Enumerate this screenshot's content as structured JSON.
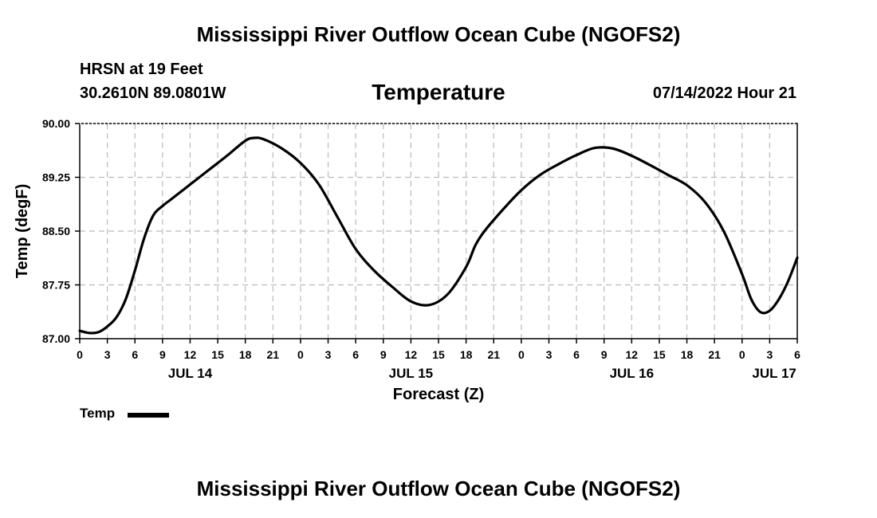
{
  "header": {
    "title": "Mississippi River Outflow Ocean Cube (NGOFS2)",
    "station": "HRSN at 19 Feet",
    "coordinates": "30.2610N  89.0801W",
    "subtitle": "Temperature",
    "datetime": "07/14/2022 Hour 21"
  },
  "footer": {
    "title": "Mississippi River Outflow Ocean Cube (NGOFS2)"
  },
  "colors": {
    "line": "#000000",
    "grid": "#bbbbbb"
  },
  "chart_data": {
    "type": "line",
    "title": "Temperature",
    "xlabel": "Forecast (Z)",
    "ylabel": "Temp (degF)",
    "xlim": [
      0,
      78
    ],
    "ylim": [
      87.0,
      90.0
    ],
    "yticks": [
      87.0,
      87.75,
      88.5,
      89.25,
      90.0
    ],
    "ytick_labels": [
      "87.00",
      "87.75",
      "88.50",
      "89.25",
      "90.00"
    ],
    "xticks": [
      0,
      3,
      6,
      9,
      12,
      15,
      18,
      21,
      24,
      27,
      30,
      33,
      36,
      39,
      42,
      45,
      48,
      51,
      54,
      57,
      60,
      63,
      66,
      69,
      72,
      75,
      78
    ],
    "xtick_labels": [
      "0",
      "3",
      "6",
      "9",
      "12",
      "15",
      "18",
      "21",
      "0",
      "3",
      "6",
      "9",
      "12",
      "15",
      "18",
      "21",
      "0",
      "3",
      "6",
      "9",
      "12",
      "15",
      "18",
      "21",
      "0",
      "3",
      "6"
    ],
    "day_labels": [
      {
        "x": 12,
        "label": "JUL 14"
      },
      {
        "x": 36,
        "label": "JUL 15"
      },
      {
        "x": 60,
        "label": "JUL 16"
      },
      {
        "x": 75.5,
        "label": "JUL 17"
      }
    ],
    "grid": true,
    "legend_position": "bottom-left",
    "series": [
      {
        "name": "Temp",
        "x": [
          0,
          1,
          2,
          3,
          4,
          5,
          6,
          7,
          8,
          9,
          10,
          12,
          14,
          16,
          18,
          19,
          20,
          22,
          24,
          26,
          28,
          30,
          32,
          34,
          36,
          38,
          40,
          42,
          43,
          44,
          46,
          48,
          50,
          52,
          54,
          56,
          58,
          60,
          62,
          64,
          66,
          68,
          70,
          72,
          73,
          74,
          75,
          76,
          77,
          78
        ],
        "y": [
          87.11,
          87.08,
          87.09,
          87.17,
          87.3,
          87.55,
          87.95,
          88.4,
          88.72,
          88.85,
          88.95,
          89.15,
          89.35,
          89.55,
          89.76,
          89.8,
          89.78,
          89.65,
          89.45,
          89.15,
          88.7,
          88.25,
          87.95,
          87.72,
          87.52,
          87.47,
          87.62,
          88.0,
          88.3,
          88.5,
          88.8,
          89.07,
          89.28,
          89.43,
          89.56,
          89.66,
          89.65,
          89.55,
          89.42,
          89.28,
          89.14,
          88.9,
          88.5,
          87.9,
          87.55,
          87.37,
          87.39,
          87.55,
          87.8,
          88.13
        ]
      }
    ]
  }
}
